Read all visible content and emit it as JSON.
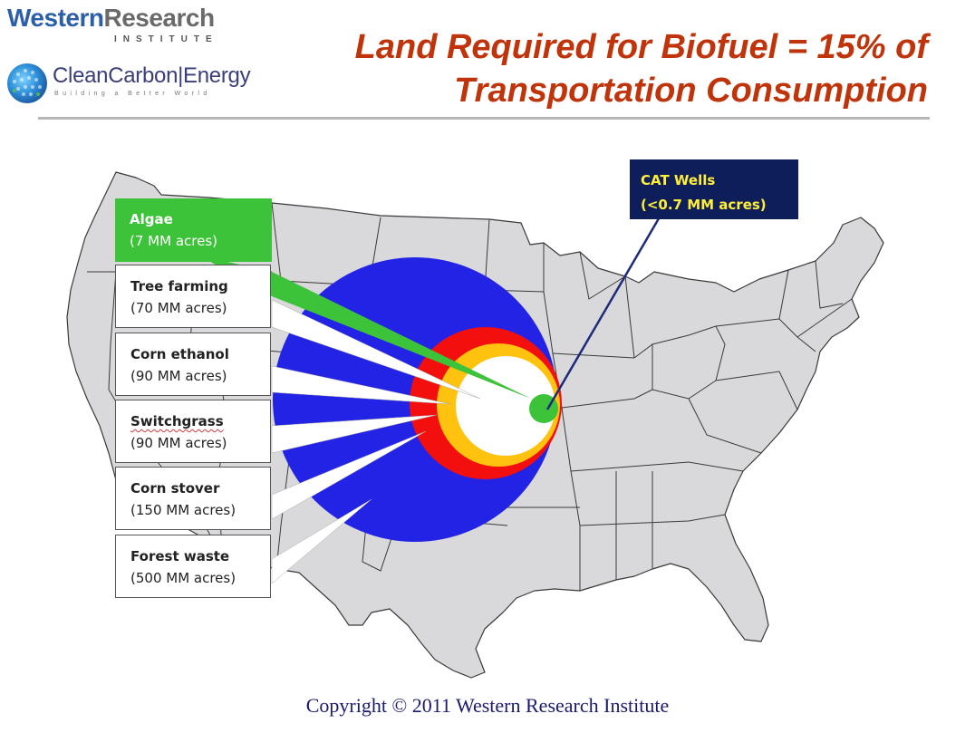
{
  "header": {
    "wri_logo_western": "Western",
    "wri_logo_research": "Research",
    "wri_logo_sub": "INSTITUTE",
    "cce_logo_text": "CleanCarbon|Energy",
    "cce_logo_tagline": "Building a Better World",
    "title_line1": "Land Required for Biofuel = 15% of",
    "title_line2": "Transportation Consumption"
  },
  "labels": [
    {
      "name": "Algae",
      "amount": "(7 MM acres)",
      "color": "#3dc33a"
    },
    {
      "name": "Tree farming",
      "amount": "(70 MM acres)"
    },
    {
      "name": "Corn ethanol",
      "amount": "(90 MM acres)"
    },
    {
      "name": "Switchgrass",
      "amount": "(90 MM acres)"
    },
    {
      "name": "Corn stover",
      "amount": "(150 MM acres)"
    },
    {
      "name": "Forest waste",
      "amount": "(500 MM acres)"
    }
  ],
  "cat_wells": {
    "name": "CAT Wells",
    "amount": "(<0.7 MM acres)"
  },
  "colors": {
    "forest_waste": "#2323e6",
    "corn_stover": "#f40f0f",
    "switchgrass": "#ffc20e",
    "tree_farming": "#ffffff",
    "algae": "#3dc33a",
    "cat_wells_box": "#0e1e5b",
    "cat_wells_text": "#ffef3a",
    "map_fill": "#d9d9db",
    "title": "#c0340c"
  },
  "footer": {
    "copyright": "Copyright © 2011 Western Research Institute"
  }
}
